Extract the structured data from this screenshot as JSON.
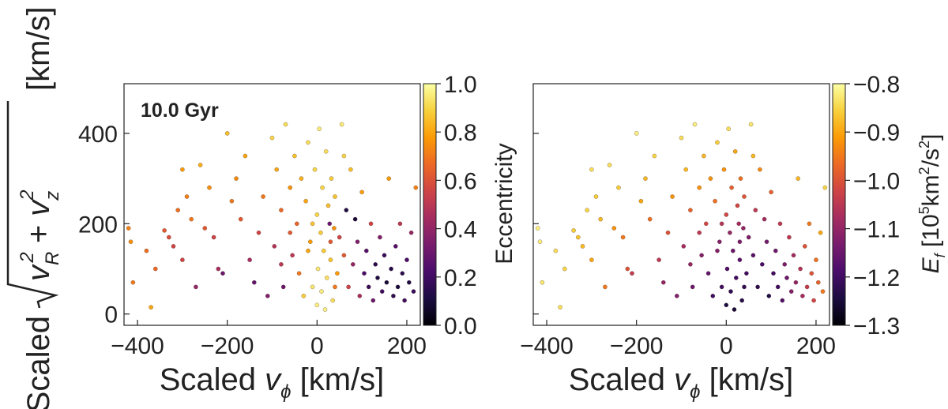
{
  "figure": {
    "ylabel_prefix": "Scaled",
    "ylabel_units": "[km/s]",
    "annotation": "10.0 Gyr"
  },
  "colormap": [
    "#000004",
    "#1b0c41",
    "#4a0c6b",
    "#781c6d",
    "#a52c60",
    "#cf4446",
    "#ed6925",
    "#fb9b06",
    "#f7d13d",
    "#fcffa4"
  ],
  "chart_data": [
    {
      "type": "scatter",
      "panel": "left",
      "xlabel": "Scaled vϕ [km/s]",
      "ylabel": "Scaled √(v_R² + v_z²) [km/s]",
      "xlim": [
        -430,
        230
      ],
      "ylim": [
        -25,
        510
      ],
      "xticks": [
        -400,
        -200,
        0,
        200
      ],
      "yticks": [
        0,
        200,
        400
      ],
      "colorbar": {
        "label": "Eccentricity",
        "range": [
          0.0,
          1.0
        ],
        "ticks": [
          "0.0",
          "0.2",
          "0.4",
          "0.6",
          "0.8",
          "1.0"
        ]
      },
      "color_trend": "eccentricity high (~0.9) near vϕ≈0 and at high speed; low (~0.1) at vϕ>100, low speed",
      "points": [
        [
          -420,
          190,
          0.72
        ],
        [
          -415,
          160,
          0.75
        ],
        [
          -410,
          70,
          0.7
        ],
        [
          -380,
          140,
          0.68
        ],
        [
          -370,
          15,
          0.8
        ],
        [
          -360,
          100,
          0.66
        ],
        [
          -340,
          185,
          0.62
        ],
        [
          -330,
          170,
          0.58
        ],
        [
          -320,
          150,
          0.55
        ],
        [
          -310,
          230,
          0.68
        ],
        [
          -300,
          120,
          0.55
        ],
        [
          -300,
          320,
          0.78
        ],
        [
          -290,
          260,
          0.72
        ],
        [
          -280,
          210,
          0.7
        ],
        [
          -270,
          60,
          0.4
        ],
        [
          -260,
          330,
          0.82
        ],
        [
          -250,
          190,
          0.62
        ],
        [
          -240,
          280,
          0.75
        ],
        [
          -230,
          170,
          0.55
        ],
        [
          -220,
          100,
          0.45
        ],
        [
          -210,
          90,
          0.3
        ],
        [
          -200,
          400,
          0.85
        ],
        [
          -190,
          250,
          0.7
        ],
        [
          -180,
          300,
          0.74
        ],
        [
          -170,
          210,
          0.62
        ],
        [
          -160,
          350,
          0.8
        ],
        [
          -150,
          120,
          0.45
        ],
        [
          -140,
          70,
          0.28
        ],
        [
          -130,
          180,
          0.55
        ],
        [
          -120,
          260,
          0.7
        ],
        [
          -110,
          40,
          0.35
        ],
        [
          -100,
          390,
          0.9
        ],
        [
          -95,
          150,
          0.48
        ],
        [
          -90,
          320,
          0.8
        ],
        [
          -80,
          230,
          0.66
        ],
        [
          -75,
          60,
          0.3
        ],
        [
          -70,
          420,
          0.92
        ],
        [
          -60,
          280,
          0.76
        ],
        [
          -55,
          130,
          0.5
        ],
        [
          -50,
          350,
          0.86
        ],
        [
          -45,
          200,
          0.65
        ],
        [
          -40,
          90,
          0.7
        ],
        [
          -35,
          300,
          0.82
        ],
        [
          -30,
          40,
          0.88
        ],
        [
          -25,
          250,
          0.8
        ],
        [
          -20,
          380,
          0.92
        ],
        [
          -15,
          160,
          0.78
        ],
        [
          -10,
          60,
          0.94
        ],
        [
          -5,
          320,
          0.9
        ],
        [
          0,
          20,
          0.96
        ],
        [
          0,
          220,
          0.9
        ],
        [
          2,
          100,
          0.95
        ],
        [
          5,
          410,
          0.95
        ],
        [
          8,
          180,
          0.88
        ],
        [
          10,
          50,
          0.96
        ],
        [
          12,
          280,
          0.9
        ],
        [
          15,
          140,
          0.88
        ],
        [
          18,
          10,
          0.97
        ],
        [
          20,
          360,
          0.92
        ],
        [
          22,
          80,
          0.93
        ],
        [
          25,
          240,
          0.85
        ],
        [
          28,
          200,
          0.3
        ],
        [
          30,
          120,
          0.86
        ],
        [
          32,
          300,
          0.88
        ],
        [
          35,
          30,
          0.92
        ],
        [
          38,
          190,
          0.75
        ],
        [
          40,
          260,
          0.86
        ],
        [
          45,
          90,
          0.78
        ],
        [
          50,
          170,
          0.55
        ],
        [
          55,
          420,
          0.95
        ],
        [
          60,
          130,
          0.62
        ],
        [
          65,
          230,
          0.12
        ],
        [
          70,
          60,
          0.55
        ],
        [
          75,
          320,
          0.85
        ],
        [
          80,
          110,
          0.4
        ],
        [
          85,
          210,
          0.1
        ],
        [
          90,
          160,
          0.35
        ],
        [
          95,
          40,
          0.45
        ],
        [
          100,
          270,
          0.78
        ],
        [
          105,
          90,
          0.22
        ],
        [
          110,
          140,
          0.25
        ],
        [
          115,
          60,
          0.18
        ],
        [
          120,
          200,
          0.55
        ],
        [
          125,
          30,
          0.3
        ],
        [
          130,
          110,
          0.15
        ],
        [
          135,
          80,
          0.12
        ],
        [
          140,
          170,
          0.35
        ],
        [
          145,
          50,
          0.2
        ],
        [
          150,
          130,
          0.18
        ],
        [
          155,
          70,
          0.1
        ],
        [
          160,
          300,
          0.78
        ],
        [
          165,
          100,
          0.14
        ],
        [
          170,
          40,
          0.16
        ],
        [
          175,
          150,
          0.25
        ],
        [
          180,
          60,
          0.1
        ],
        [
          185,
          200,
          0.5
        ],
        [
          190,
          90,
          0.15
        ],
        [
          195,
          30,
          0.2
        ],
        [
          200,
          120,
          0.22
        ],
        [
          205,
          70,
          0.12
        ],
        [
          210,
          180,
          0.4
        ],
        [
          215,
          50,
          0.18
        ],
        [
          220,
          280,
          0.72
        ],
        [
          -20,
          140,
          0.8
        ],
        [
          -10,
          200,
          0.86
        ],
        [
          40,
          60,
          0.7
        ],
        [
          60,
          350,
          0.9
        ],
        [
          -60,
          180,
          0.62
        ],
        [
          30,
          160,
          0.62
        ],
        [
          -80,
          110,
          0.5
        ]
      ]
    },
    {
      "type": "scatter",
      "panel": "right",
      "xlabel": "Scaled vϕ [km/s]",
      "ylabel": "",
      "xlim": [
        -430,
        230
      ],
      "ylim": [
        -25,
        510
      ],
      "xticks": [
        -400,
        -200,
        0,
        200
      ],
      "yticks": [
        0,
        200,
        400
      ],
      "colorbar": {
        "label": "E_f [10⁵km²/s²]",
        "range": [
          -1.3,
          -0.8
        ],
        "ticks": [
          "−1.3",
          "−1.2",
          "−1.1",
          "−1.0",
          "−0.9",
          "−0.8"
        ]
      },
      "color_trend": "energy highest (≈−0.8) at high speed / large |vϕ|; lowest (≈−1.25) near vϕ≈0–100, low speed",
      "points": [
        [
          -420,
          190,
          -0.82
        ],
        [
          -415,
          160,
          -0.82
        ],
        [
          -410,
          70,
          -0.83
        ],
        [
          -380,
          140,
          -0.84
        ],
        [
          -370,
          15,
          -0.84
        ],
        [
          -360,
          100,
          -0.85
        ],
        [
          -340,
          185,
          -0.86
        ],
        [
          -330,
          170,
          -0.87
        ],
        [
          -320,
          150,
          -0.88
        ],
        [
          -310,
          230,
          -0.85
        ],
        [
          -300,
          120,
          -0.9
        ],
        [
          -300,
          320,
          -0.84
        ],
        [
          -290,
          260,
          -0.86
        ],
        [
          -280,
          210,
          -0.88
        ],
        [
          -270,
          60,
          -0.95
        ],
        [
          -260,
          330,
          -0.84
        ],
        [
          -250,
          190,
          -0.92
        ],
        [
          -240,
          280,
          -0.86
        ],
        [
          -230,
          170,
          -0.95
        ],
        [
          -220,
          100,
          -1.0
        ],
        [
          -210,
          90,
          -1.04
        ],
        [
          -200,
          400,
          -0.82
        ],
        [
          -190,
          250,
          -0.9
        ],
        [
          -180,
          300,
          -0.88
        ],
        [
          -170,
          210,
          -0.96
        ],
        [
          -160,
          350,
          -0.85
        ],
        [
          -150,
          120,
          -1.05
        ],
        [
          -140,
          70,
          -1.1
        ],
        [
          -130,
          180,
          -1.0
        ],
        [
          -120,
          260,
          -0.92
        ],
        [
          -110,
          40,
          -1.12
        ],
        [
          -100,
          390,
          -0.84
        ],
        [
          -95,
          150,
          -1.08
        ],
        [
          -90,
          320,
          -0.88
        ],
        [
          -80,
          230,
          -0.98
        ],
        [
          -75,
          60,
          -1.15
        ],
        [
          -70,
          420,
          -0.82
        ],
        [
          -60,
          280,
          -0.92
        ],
        [
          -55,
          130,
          -1.12
        ],
        [
          -50,
          350,
          -0.88
        ],
        [
          -45,
          200,
          -1.02
        ],
        [
          -40,
          90,
          -1.16
        ],
        [
          -35,
          300,
          -0.92
        ],
        [
          -30,
          40,
          -1.2
        ],
        [
          -25,
          250,
          -0.96
        ],
        [
          -20,
          380,
          -0.86
        ],
        [
          -15,
          160,
          -1.12
        ],
        [
          -10,
          60,
          -1.2
        ],
        [
          -5,
          320,
          -0.92
        ],
        [
          0,
          20,
          -1.24
        ],
        [
          0,
          220,
          -1.02
        ],
        [
          2,
          100,
          -1.18
        ],
        [
          5,
          410,
          -0.84
        ],
        [
          8,
          180,
          -1.1
        ],
        [
          10,
          50,
          -1.22
        ],
        [
          12,
          280,
          -0.98
        ],
        [
          15,
          140,
          -1.15
        ],
        [
          18,
          10,
          -1.25
        ],
        [
          20,
          360,
          -0.9
        ],
        [
          22,
          80,
          -1.2
        ],
        [
          25,
          240,
          -1.02
        ],
        [
          28,
          200,
          -1.08
        ],
        [
          30,
          120,
          -1.17
        ],
        [
          32,
          300,
          -0.96
        ],
        [
          35,
          30,
          -1.23
        ],
        [
          38,
          190,
          -1.1
        ],
        [
          40,
          260,
          -1.0
        ],
        [
          45,
          90,
          -1.2
        ],
        [
          50,
          170,
          -1.13
        ],
        [
          55,
          420,
          -0.83
        ],
        [
          60,
          130,
          -1.17
        ],
        [
          65,
          230,
          -1.05
        ],
        [
          70,
          60,
          -1.22
        ],
        [
          75,
          320,
          -0.93
        ],
        [
          80,
          110,
          -1.19
        ],
        [
          85,
          210,
          -1.08
        ],
        [
          90,
          160,
          -1.14
        ],
        [
          95,
          40,
          -1.24
        ],
        [
          100,
          270,
          -0.98
        ],
        [
          105,
          90,
          -1.2
        ],
        [
          110,
          140,
          -1.15
        ],
        [
          115,
          60,
          -1.2
        ],
        [
          120,
          200,
          -1.05
        ],
        [
          125,
          30,
          -1.18
        ],
        [
          130,
          110,
          -1.13
        ],
        [
          135,
          80,
          -1.15
        ],
        [
          140,
          170,
          -1.05
        ],
        [
          145,
          50,
          -1.12
        ],
        [
          150,
          130,
          -1.08
        ],
        [
          155,
          70,
          -1.1
        ],
        [
          160,
          300,
          -0.88
        ],
        [
          165,
          100,
          -1.06
        ],
        [
          170,
          40,
          -1.08
        ],
        [
          175,
          150,
          -1.0
        ],
        [
          180,
          60,
          -1.04
        ],
        [
          185,
          200,
          -0.95
        ],
        [
          190,
          90,
          -1.0
        ],
        [
          195,
          30,
          -1.02
        ],
        [
          200,
          120,
          -0.96
        ],
        [
          205,
          70,
          -0.98
        ],
        [
          210,
          180,
          -0.9
        ],
        [
          215,
          50,
          -0.95
        ],
        [
          220,
          280,
          -0.85
        ],
        [
          -20,
          140,
          -1.12
        ],
        [
          -10,
          200,
          -1.06
        ],
        [
          40,
          60,
          -1.22
        ],
        [
          60,
          350,
          -0.88
        ],
        [
          -60,
          180,
          -1.05
        ],
        [
          30,
          160,
          -1.13
        ],
        [
          -80,
          110,
          -1.1
        ]
      ]
    }
  ]
}
